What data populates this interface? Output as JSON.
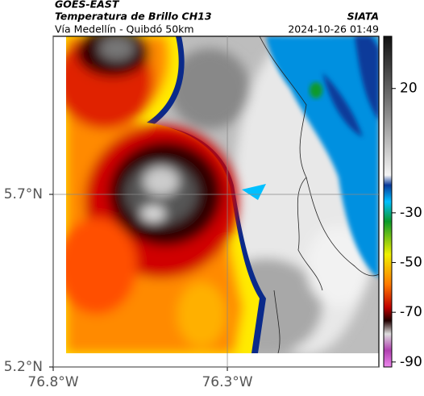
{
  "header": {
    "product": "GOES-EAST",
    "title": "Temperatura de Brillo CH13",
    "subtitle": "Vía Medellín - Quibdó 50km",
    "source": "SIATA",
    "timestamp": "2024-10-26 01:49"
  },
  "map": {
    "xlim": [
      -76.8,
      -75.865
    ],
    "ylim": [
      5.2,
      6.158
    ],
    "xticks": [
      {
        "value": -76.8,
        "label": "76.8°W"
      },
      {
        "value": -76.3,
        "label": "76.3°W"
      }
    ],
    "yticks": [
      {
        "value": 5.2,
        "label": "5.2°N"
      },
      {
        "value": 5.7,
        "label": "5.7°N"
      }
    ],
    "grid": true
  },
  "colorbar": {
    "range": [
      41,
      -92
    ],
    "ticks": [
      20,
      -30,
      -50,
      -70,
      -90
    ]
  }
}
